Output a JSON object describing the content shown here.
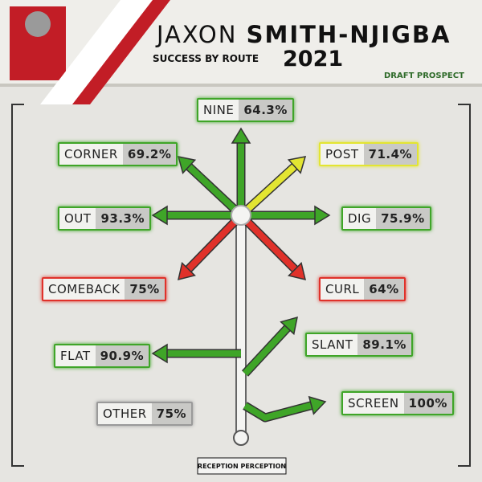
{
  "header": {
    "first_name": "JAXON",
    "last_name": "SMITH-NJIGBA",
    "subtitle": "SUCCESS BY ROUTE",
    "year": "2021",
    "tag": "DRAFT PROSPECT"
  },
  "routes": [
    {
      "name": "NINE",
      "value": "64.3%",
      "color": "#3fa528"
    },
    {
      "name": "CORNER",
      "value": "69.2%",
      "color": "#3fa528"
    },
    {
      "name": "POST",
      "value": "71.4%",
      "color": "#e3e532"
    },
    {
      "name": "OUT",
      "value": "93.3%",
      "color": "#3fa528"
    },
    {
      "name": "DIG",
      "value": "75.9%",
      "color": "#3fa528"
    },
    {
      "name": "COMEBACK",
      "value": "75%",
      "color": "#e0312a"
    },
    {
      "name": "CURL",
      "value": "64%",
      "color": "#e0312a"
    },
    {
      "name": "FLAT",
      "value": "90.9%",
      "color": "#3fa528"
    },
    {
      "name": "SLANT",
      "value": "89.1%",
      "color": "#3fa528"
    },
    {
      "name": "SCREEN",
      "value": "100%",
      "color": "#3fa528"
    },
    {
      "name": "OTHER",
      "value": "75%",
      "color": "#9a9a9a"
    }
  ],
  "footer": "RECEPTION PERCEPTION"
}
